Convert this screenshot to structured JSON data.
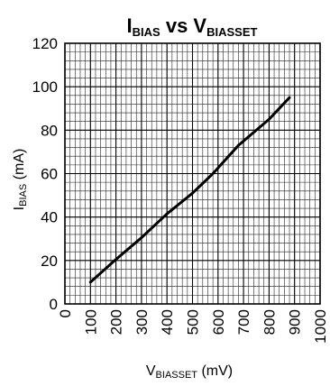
{
  "chart_data": {
    "type": "line",
    "title": {
      "main_1": "I",
      "sub_1": "BIAS",
      "main_2": " vs ",
      "main_3": "V",
      "sub_2": "BIASSET"
    },
    "xlabel": {
      "main": "V",
      "sub": "BIASSET",
      "unit": " (mV)"
    },
    "ylabel": {
      "main": "I",
      "sub": "BIAS",
      "unit": " (mA)"
    },
    "xlim": [
      0,
      1000
    ],
    "ylim": [
      0,
      120
    ],
    "x_ticks": [
      "0",
      "100",
      "200",
      "300",
      "400",
      "500",
      "600",
      "700",
      "800",
      "900",
      "1000"
    ],
    "y_ticks": [
      "0",
      "20",
      "40",
      "60",
      "80",
      "100",
      "120"
    ],
    "grid": true,
    "grid_minor_x_step": 20,
    "grid_minor_y_step": 4,
    "series": [
      {
        "x": [
          100,
          200,
          300,
          400,
          500,
          580,
          680,
          800,
          880
        ],
        "y": [
          10,
          20.5,
          30.5,
          41.5,
          51,
          60,
          73,
          85,
          95
        ]
      }
    ],
    "colors": {
      "line": "#000000",
      "grid": "#222222",
      "frame": "#000000",
      "background": "#ffffff"
    }
  }
}
